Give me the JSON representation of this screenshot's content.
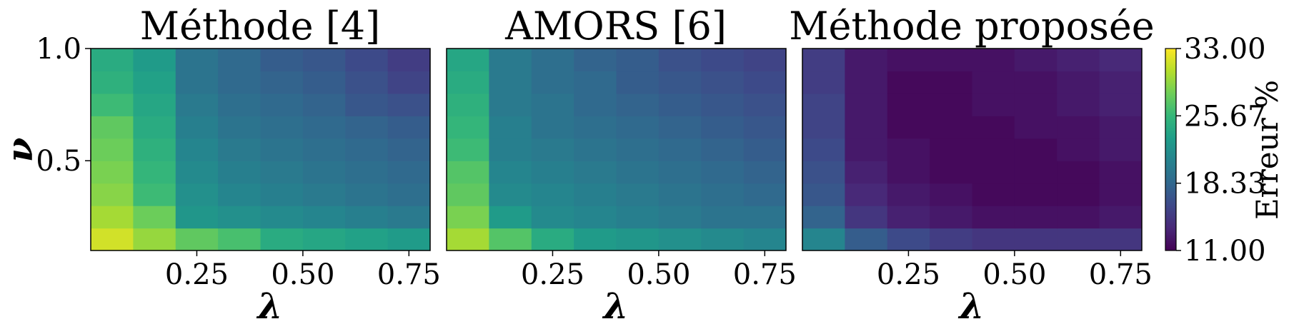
{
  "colors": {
    "viridis": [
      "#440154",
      "#482878",
      "#3e4989",
      "#31688e",
      "#26828e",
      "#1f9e89",
      "#35b779",
      "#6ece58",
      "#b5de2b",
      "#fde725"
    ]
  },
  "chart_data": [
    {
      "type": "heatmap",
      "title": "Méthode [4]",
      "xlabel": "λ",
      "ylabel": "ν",
      "xlim": [
        0.0,
        0.8
      ],
      "ylim": [
        0.1,
        1.0
      ],
      "xticks": [
        0.25,
        0.5,
        0.75
      ],
      "xtick_labels": [
        "0.25",
        "0.50",
        "0.75"
      ],
      "yticks": [
        0.5,
        1.0
      ],
      "ytick_labels": [
        "0.5",
        "1.0"
      ],
      "x": [
        0.05,
        0.15,
        0.25,
        0.35,
        0.45,
        0.55,
        0.65,
        0.75
      ],
      "y": [
        0.15,
        0.25,
        0.35,
        0.45,
        0.55,
        0.65,
        0.75,
        0.85,
        0.95
      ],
      "z": [
        [
          31.5,
          29.5,
          27.5,
          26.5,
          24.5,
          24.0,
          23.5,
          23.0
        ],
        [
          30.0,
          28.0,
          22.5,
          22.0,
          21.5,
          21.0,
          20.5,
          20.0
        ],
        [
          29.0,
          26.0,
          22.0,
          21.0,
          20.5,
          20.0,
          19.5,
          19.0
        ],
        [
          28.5,
          25.5,
          21.5,
          20.5,
          20.0,
          19.5,
          19.0,
          18.5
        ],
        [
          28.0,
          25.0,
          21.0,
          20.0,
          19.5,
          19.0,
          18.5,
          18.0
        ],
        [
          27.5,
          24.5,
          20.5,
          19.5,
          19.0,
          18.5,
          18.0,
          17.5
        ],
        [
          26.0,
          24.0,
          20.0,
          19.0,
          18.5,
          18.0,
          17.0,
          16.5
        ],
        [
          25.0,
          23.5,
          19.5,
          18.5,
          18.0,
          17.5,
          16.5,
          15.5
        ],
        [
          24.5,
          23.0,
          19.5,
          18.5,
          17.5,
          17.0,
          16.0,
          15.0
        ]
      ]
    },
    {
      "type": "heatmap",
      "title": "AMORS [6]",
      "xlabel": "λ",
      "ylabel": "",
      "xlim": [
        0.0,
        0.8
      ],
      "ylim": [
        0.1,
        1.0
      ],
      "xticks": [
        0.25,
        0.5,
        0.75
      ],
      "xtick_labels": [
        "0.25",
        "0.50",
        "0.75"
      ],
      "yticks": [],
      "ytick_labels": [],
      "x": [
        0.05,
        0.15,
        0.25,
        0.35,
        0.45,
        0.55,
        0.65,
        0.75
      ],
      "y": [
        0.15,
        0.25,
        0.35,
        0.45,
        0.55,
        0.65,
        0.75,
        0.85,
        0.95
      ],
      "z": [
        [
          30.0,
          27.0,
          24.5,
          23.0,
          22.5,
          22.0,
          21.5,
          21.0
        ],
        [
          28.5,
          23.0,
          21.5,
          21.0,
          20.5,
          20.0,
          19.5,
          19.5
        ],
        [
          27.5,
          21.5,
          21.0,
          20.5,
          20.0,
          19.5,
          19.0,
          18.5
        ],
        [
          27.0,
          21.0,
          20.5,
          20.0,
          19.5,
          19.0,
          18.5,
          18.0
        ],
        [
          26.0,
          20.5,
          20.0,
          19.5,
          19.0,
          18.5,
          18.0,
          17.5
        ],
        [
          25.5,
          20.5,
          19.5,
          19.0,
          18.5,
          18.0,
          17.5,
          17.0
        ],
        [
          25.0,
          20.0,
          19.5,
          18.5,
          18.0,
          17.5,
          17.0,
          16.5
        ],
        [
          24.5,
          20.0,
          19.0,
          18.5,
          17.5,
          17.0,
          16.5,
          16.0
        ],
        [
          24.0,
          20.0,
          19.0,
          18.0,
          17.5,
          16.5,
          16.0,
          15.5
        ]
      ]
    },
    {
      "type": "heatmap",
      "title": "Méthode proposée",
      "xlabel": "λ",
      "ylabel": "",
      "xlim": [
        0.0,
        0.8
      ],
      "ylim": [
        0.1,
        1.0
      ],
      "xticks": [
        0.25,
        0.5,
        0.75
      ],
      "xtick_labels": [
        "0.25",
        "0.50",
        "0.75"
      ],
      "yticks": [],
      "ytick_labels": [],
      "x": [
        0.05,
        0.15,
        0.25,
        0.35,
        0.45,
        0.55,
        0.65,
        0.75
      ],
      "y": [
        0.15,
        0.25,
        0.35,
        0.45,
        0.55,
        0.65,
        0.75,
        0.85,
        0.95
      ],
      "z": [
        [
          21.0,
          17.5,
          16.0,
          15.0,
          14.5,
          14.5,
          14.5,
          14.5
        ],
        [
          18.0,
          14.5,
          13.0,
          12.5,
          12.0,
          12.0,
          12.0,
          12.5
        ],
        [
          17.0,
          13.5,
          12.5,
          12.0,
          11.5,
          11.5,
          11.5,
          12.0
        ],
        [
          16.5,
          13.0,
          12.0,
          11.5,
          11.5,
          11.5,
          11.5,
          12.0
        ],
        [
          16.0,
          12.5,
          12.0,
          11.5,
          11.5,
          11.5,
          12.0,
          12.5
        ],
        [
          15.5,
          12.5,
          11.5,
          11.5,
          11.5,
          12.0,
          12.0,
          12.5
        ],
        [
          15.5,
          12.5,
          11.5,
          11.5,
          12.0,
          12.0,
          12.5,
          13.0
        ],
        [
          15.0,
          12.5,
          11.5,
          11.5,
          12.0,
          12.0,
          12.5,
          13.0
        ],
        [
          15.0,
          12.5,
          12.0,
          12.0,
          12.0,
          12.5,
          13.0,
          13.5
        ]
      ]
    }
  ],
  "colorbar": {
    "label": "Erreur %",
    "min": 11.0,
    "max": 33.0,
    "ticks": [
      11.0,
      18.33,
      25.67,
      33.0
    ],
    "tick_labels": [
      "11.00",
      "18.33",
      "25.67",
      "33.00"
    ]
  }
}
